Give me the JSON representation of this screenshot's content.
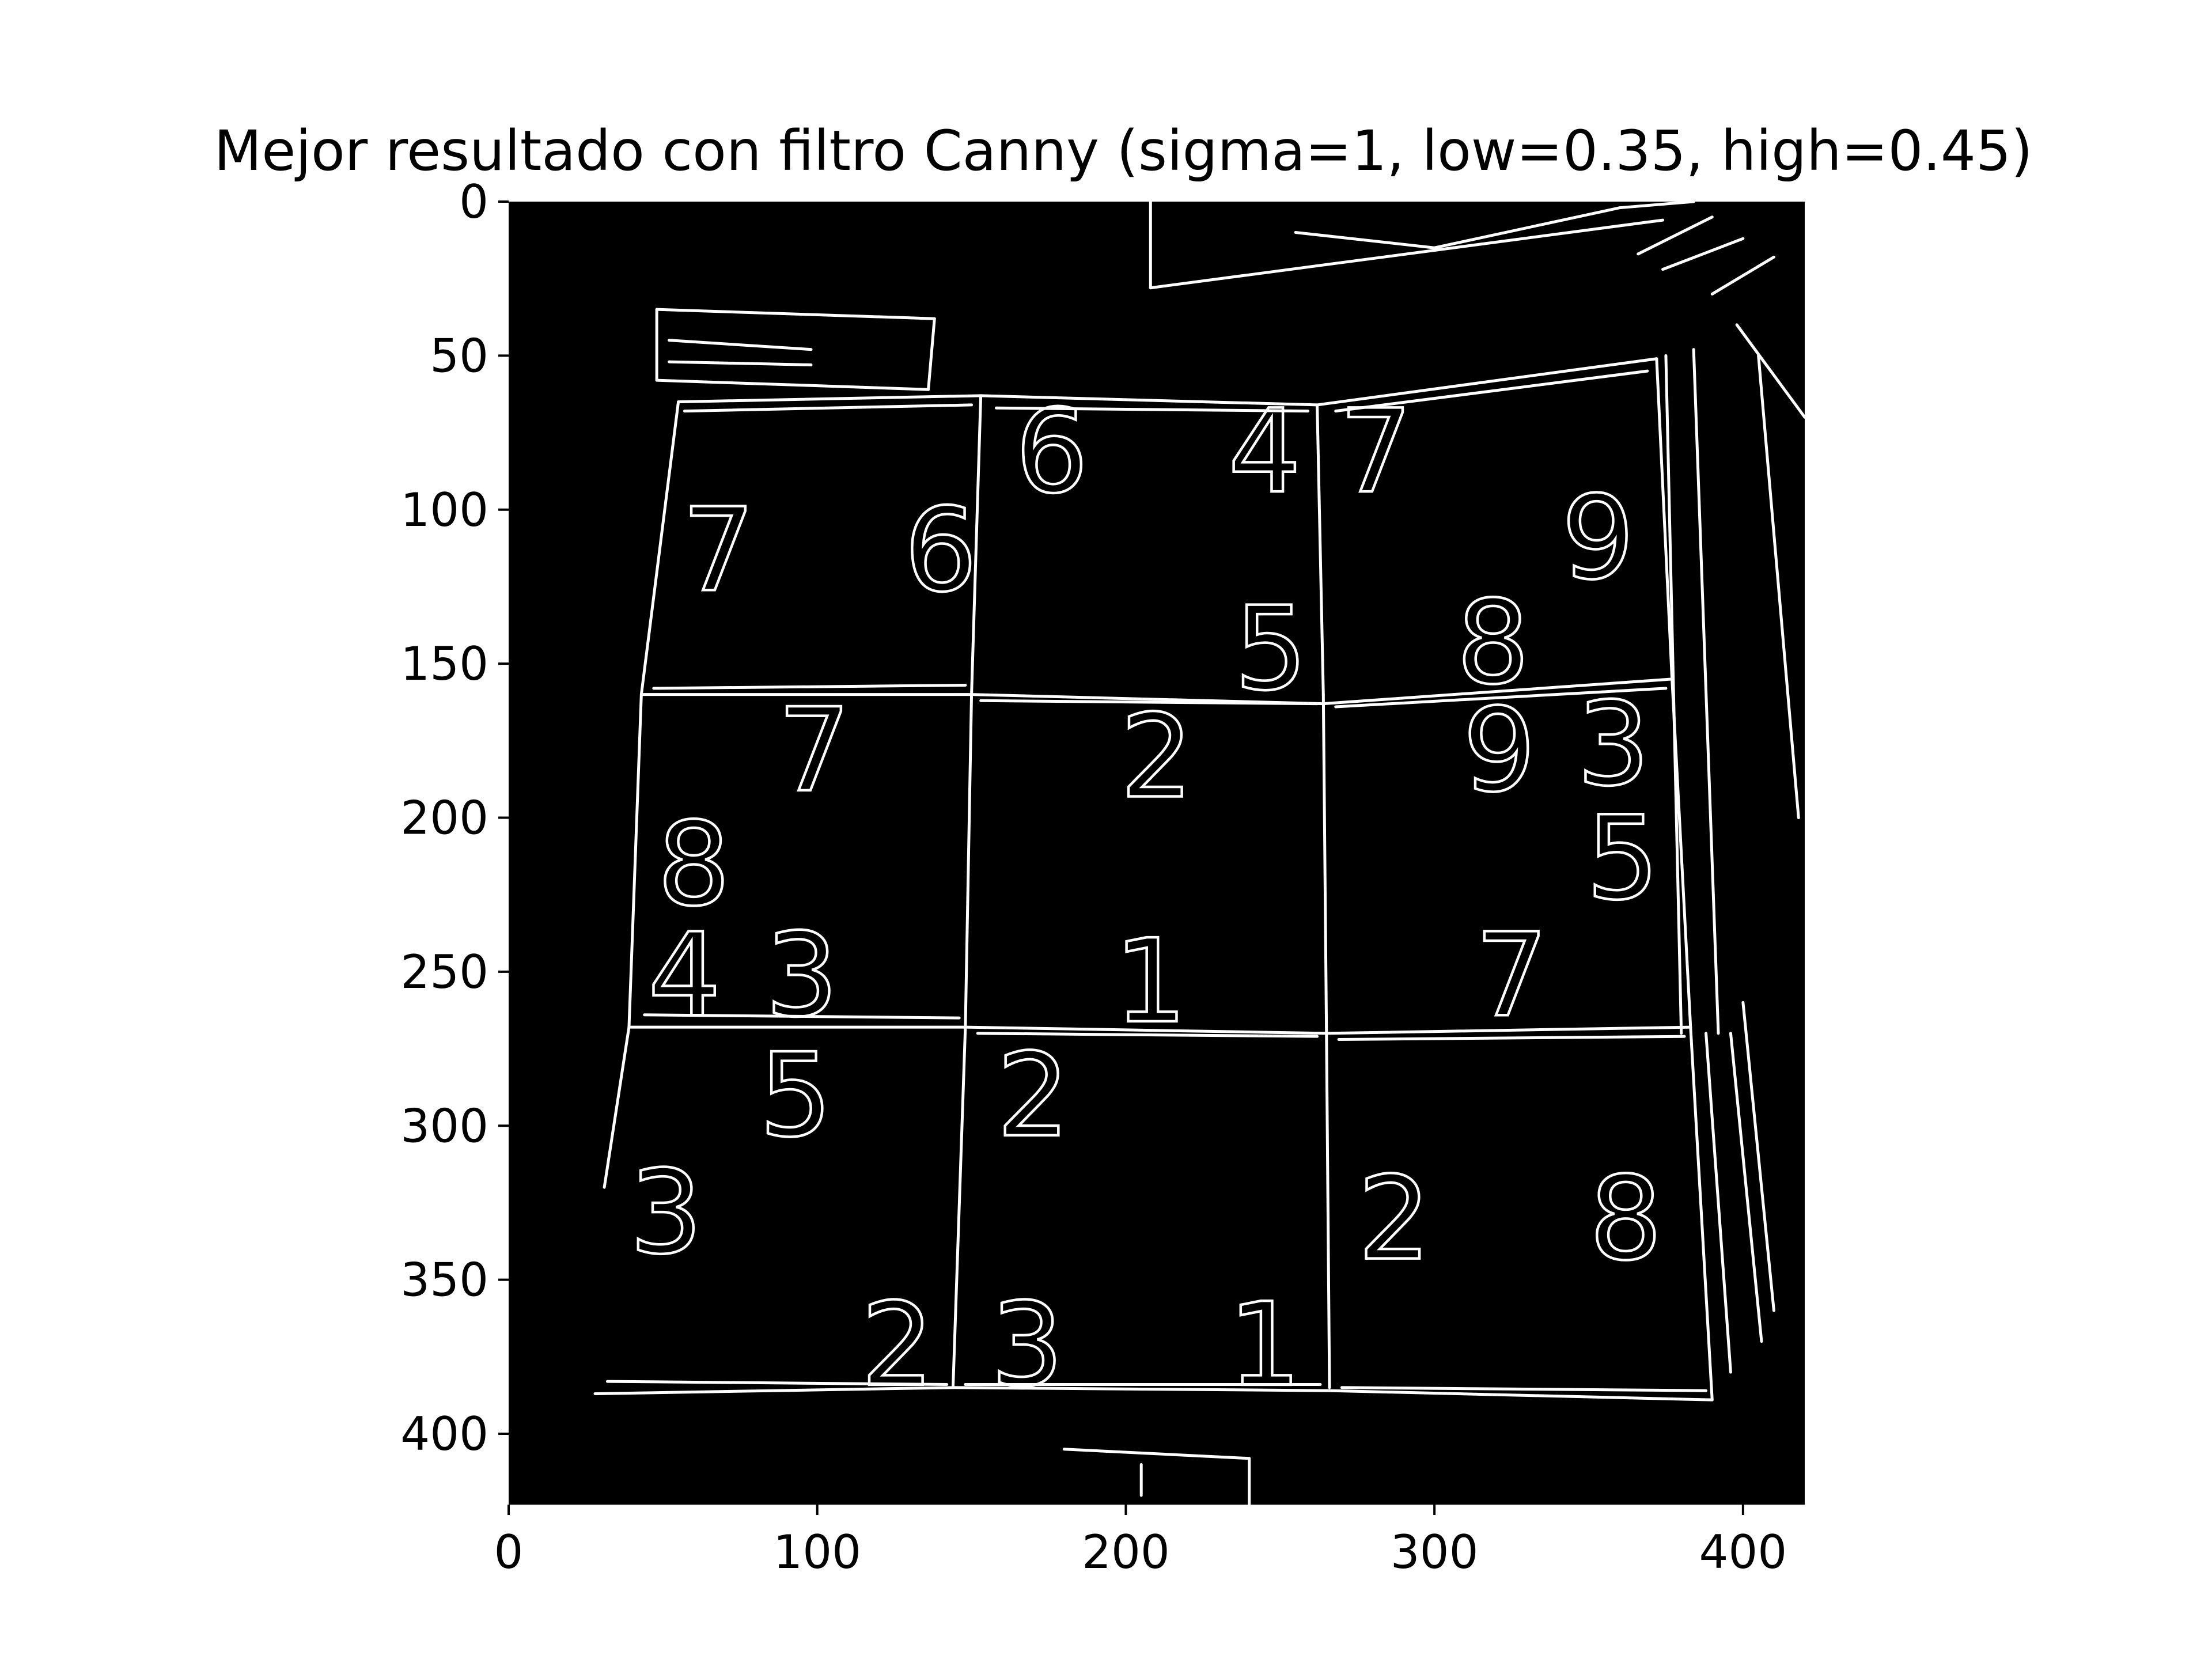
{
  "figure": {
    "title": "Mejor resultado con filtro Canny (sigma=1, low=0.35, high=0.45)",
    "background_color": "#000000",
    "edge_color": "#ffffff"
  },
  "axes": {
    "x_ticks": [
      "0",
      "100",
      "200",
      "300",
      "400"
    ],
    "y_ticks": [
      "0",
      "50",
      "100",
      "150",
      "200",
      "250",
      "300",
      "350",
      "400"
    ],
    "x_range": [
      0,
      420
    ],
    "y_range": [
      0,
      423
    ]
  },
  "image_content": {
    "description_visible": "edge-detected sudoku grid",
    "digits": [
      {
        "text": "6",
        "x": 176,
        "y": 81
      },
      {
        "text": "4",
        "x": 245,
        "y": 81
      },
      {
        "text": "7",
        "x": 281,
        "y": 81
      },
      {
        "text": "7",
        "x": 68,
        "y": 113
      },
      {
        "text": "6",
        "x": 140,
        "y": 113
      },
      {
        "text": "9",
        "x": 353,
        "y": 109
      },
      {
        "text": "5",
        "x": 247,
        "y": 145
      },
      {
        "text": "8",
        "x": 319,
        "y": 143
      },
      {
        "text": "7",
        "x": 99,
        "y": 178
      },
      {
        "text": "2",
        "x": 210,
        "y": 180
      },
      {
        "text": "9",
        "x": 321,
        "y": 178
      },
      {
        "text": "3",
        "x": 358,
        "y": 176
      },
      {
        "text": "8",
        "x": 60,
        "y": 215
      },
      {
        "text": "5",
        "x": 361,
        "y": 213
      },
      {
        "text": "4",
        "x": 57,
        "y": 251
      },
      {
        "text": "3",
        "x": 95,
        "y": 251
      },
      {
        "text": "1",
        "x": 208,
        "y": 253
      },
      {
        "text": "7",
        "x": 325,
        "y": 251
      },
      {
        "text": "5",
        "x": 93,
        "y": 290
      },
      {
        "text": "2",
        "x": 170,
        "y": 290
      },
      {
        "text": "3",
        "x": 51,
        "y": 328
      },
      {
        "text": "2",
        "x": 287,
        "y": 330
      },
      {
        "text": "8",
        "x": 362,
        "y": 330
      },
      {
        "text": "2",
        "x": 126,
        "y": 371
      },
      {
        "text": "3",
        "x": 168,
        "y": 371
      },
      {
        "text": "1",
        "x": 245,
        "y": 371
      }
    ]
  }
}
